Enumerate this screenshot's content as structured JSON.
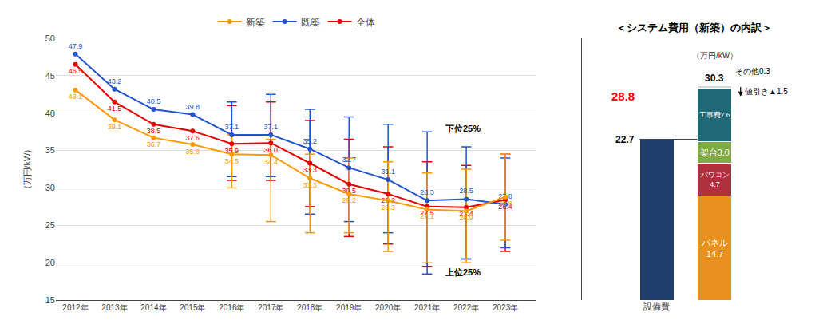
{
  "chart_data": [
    {
      "type": "line",
      "x": [
        2012,
        2013,
        2014,
        2015,
        2016,
        2017,
        2018,
        2019,
        2020,
        2021,
        2022,
        2023
      ],
      "xlim": [
        2011.5,
        2023.8
      ],
      "xticks": [
        {
          "value": 2012,
          "label": "2012年"
        },
        {
          "value": 2013,
          "label": "2013年"
        },
        {
          "value": 2014,
          "label": "2014年"
        },
        {
          "value": 2015,
          "label": "2015年"
        },
        {
          "value": 2016,
          "label": "2016年"
        },
        {
          "value": 2017,
          "label": "2017年"
        },
        {
          "value": 2018,
          "label": "2018年"
        },
        {
          "value": 2019,
          "label": "2019年"
        },
        {
          "value": 2020,
          "label": "2020年"
        },
        {
          "value": 2021,
          "label": "2021年"
        },
        {
          "value": 2022,
          "label": "2022年"
        },
        {
          "value": 2023,
          "label": "2023年"
        }
      ],
      "ylim": [
        15,
        50
      ],
      "yticks": [
        15,
        20,
        25,
        30,
        35,
        40,
        45,
        50
      ],
      "ylabel": "(万円/kW)",
      "grid": "y",
      "legend": "top",
      "data_labels": true,
      "marker": "circle",
      "series": [
        {
          "name": "全体",
          "color": "#e60000",
          "values": [
            46.5,
            41.5,
            38.5,
            37.6,
            35.9,
            36.0,
            33.3,
            30.5,
            29.2,
            27.5,
            27.4,
            28.4
          ],
          "value_labels": [
            "46.5",
            "41.5",
            "38.5",
            "37.6",
            "35.9",
            "36.0",
            "33.3",
            "30.5",
            "29.2",
            "27.5",
            "27.4",
            "28.4"
          ],
          "upper": [
            null,
            null,
            null,
            null,
            41.0,
            41.5,
            39.0,
            36.5,
            35.5,
            33.5,
            33.0,
            34.5
          ],
          "lower": [
            null,
            null,
            null,
            null,
            31.0,
            31.0,
            27.5,
            23.5,
            22.5,
            19.5,
            20.5,
            21.5
          ]
        },
        {
          "name": "既築",
          "color": "#2255cc",
          "values": [
            47.9,
            43.2,
            40.5,
            39.8,
            37.1,
            37.1,
            35.2,
            32.7,
            31.1,
            28.3,
            28.5,
            27.8
          ],
          "upper": [
            null,
            null,
            null,
            null,
            41.5,
            42.5,
            40.5,
            39.5,
            38.5,
            37.5,
            35.5,
            34.0
          ],
          "lower": [
            null,
            null,
            null,
            null,
            31.5,
            31.5,
            26.5,
            25.5,
            24.0,
            18.5,
            20.5,
            22.0
          ]
        },
        {
          "name": "新築",
          "color": "#ff9900",
          "values": [
            43.1,
            39.1,
            36.7,
            35.8,
            34.5,
            34.4,
            31.3,
            29.2,
            28.3,
            27.1,
            26.9,
            28.8
          ],
          "upper": [
            null,
            null,
            null,
            null,
            37.1,
            36.5,
            34.5,
            34.0,
            33.5,
            32.0,
            32.5,
            34.5
          ],
          "lower": [
            null,
            null,
            null,
            null,
            30.0,
            25.5,
            24.0,
            24.0,
            21.5,
            20.0,
            20.0,
            23.0
          ]
        }
      ],
      "annotations": [
        "下位25%",
        "上位25%"
      ]
    },
    {
      "type": "bar",
      "stacked": true,
      "title": "＜システム費用（新築）の内訳＞",
      "ylabel": "（万円/kW）",
      "categories": [
        "設備費",
        null
      ],
      "ylim": [
        0,
        37
      ],
      "tick_labels": "x",
      "grid": false,
      "legend": false,
      "data_labels": true,
      "series": [
        {
          "name": "設備費",
          "color": "#1e3f6e",
          "values": [
            22.7,
            null
          ]
        },
        {
          "name": "パネル",
          "color": "#e8911e",
          "values": [
            null,
            14.7
          ],
          "value_labels": [
            null,
            "パネル\n14.7"
          ]
        },
        {
          "name": "パワコン",
          "color": "#b03040",
          "values": [
            null,
            4.7
          ],
          "value_labels": [
            null,
            "パワコン\n4.7"
          ]
        },
        {
          "name": "架台",
          "color": "#7faa44",
          "values": [
            null,
            3.0
          ],
          "value_labels": [
            null,
            "架台3.0"
          ]
        },
        {
          "name": "工事費",
          "color": "#1e6878",
          "values": [
            null,
            7.6
          ],
          "value_labels": [
            null,
            "工事費7.6"
          ]
        },
        {
          "name": "その他",
          "color": "#d8d8d8",
          "values": [
            null,
            0.3
          ],
          "value_labels": [
            null,
            "その他0.3"
          ]
        }
      ],
      "total": 30.3,
      "discounted": 28.8,
      "discounted_color": "red",
      "discount_label": "値引き▲1.5"
    }
  ]
}
